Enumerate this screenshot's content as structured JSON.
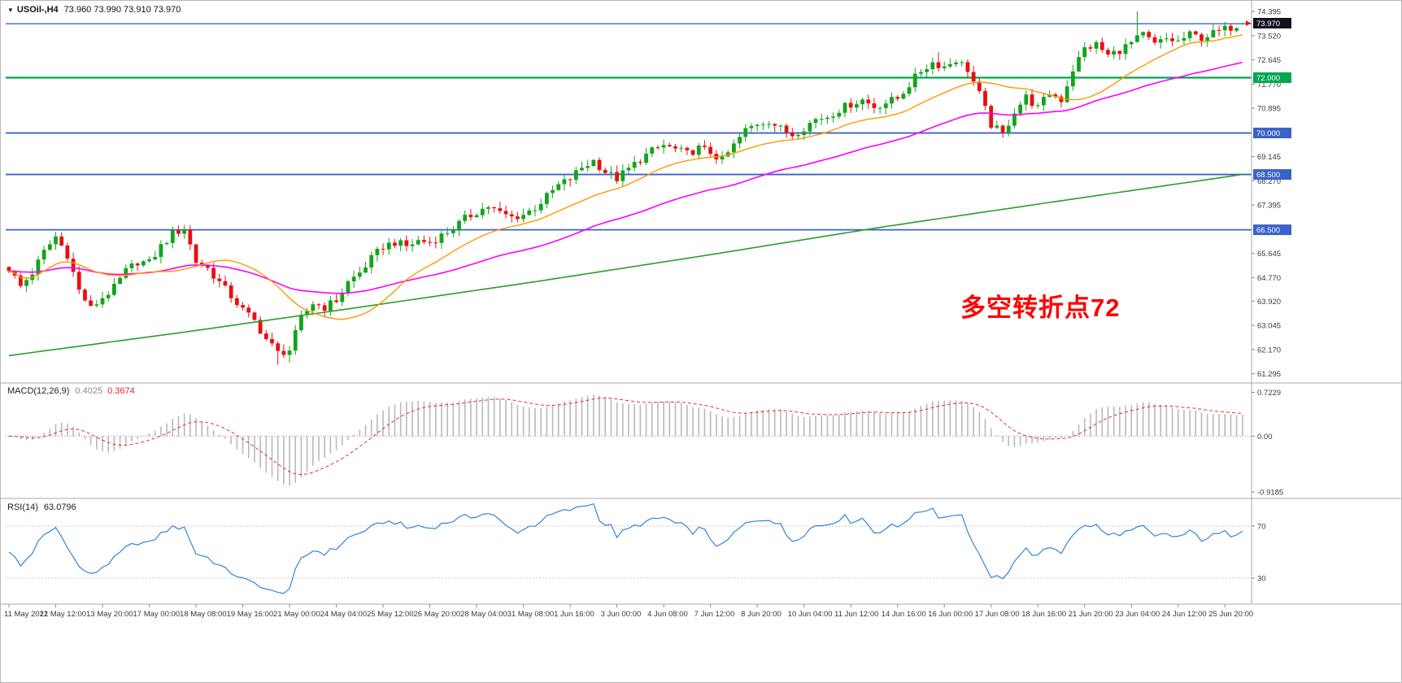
{
  "window": {
    "symbol_period": "USOil-,H4",
    "ohlc_quotes": "73.960 73.990 73.910 73.970"
  },
  "annotation": {
    "text": "多空转折点72",
    "color": "#ff0000"
  },
  "main_chart": {
    "price_axis_labels": [
      "74.395",
      "73.520",
      "72.645",
      "71.770",
      "70.895",
      "69.145",
      "68.270",
      "67.395",
      "65.645",
      "64.770",
      "63.920",
      "63.045",
      "62.170",
      "61.295"
    ],
    "price_badges": [
      {
        "text": "73.970",
        "price": 73.97,
        "bg": "#10131e"
      },
      {
        "text": "72.000",
        "price": 72.0,
        "bg": "#00a651"
      },
      {
        "text": "70.000",
        "price": 70.0,
        "bg": "#3a62c8"
      },
      {
        "text": "68.500",
        "price": 68.5,
        "bg": "#3a62c8"
      },
      {
        "text": "66.500",
        "price": 66.5,
        "bg": "#3a62c8"
      }
    ],
    "hlines": [
      {
        "price": 73.95,
        "color": "#3a62c8",
        "width": 1.4
      },
      {
        "price": 72.0,
        "color": "#00a651",
        "width": 2.2
      },
      {
        "price": 70.0,
        "color": "#3a62c8",
        "width": 1.8
      },
      {
        "price": 68.5,
        "color": "#3a62c8",
        "width": 1.8
      },
      {
        "price": 66.5,
        "color": "#3a62c8",
        "width": 1.8
      }
    ]
  },
  "macd_panel": {
    "name": "MACD(12,26,9)",
    "main_value": "0.4025",
    "signal_value": "0.3674",
    "axis_labels": [
      "0.7229",
      "0.00",
      "-0.9185"
    ]
  },
  "rsi_panel": {
    "name": "RSI(14)",
    "value": "63.0796",
    "level_labels": [
      "70",
      "30"
    ]
  },
  "time_axis": {
    "labels": [
      "11 May 2021",
      "12 May 12:00",
      "13 May 20:00",
      "17 May 00:00",
      "18 May 08:00",
      "19 May 16:00",
      "21 May 00:00",
      "24 May 04:00",
      "25 May 12:00",
      "26 May 20:00",
      "28 May 04:00",
      "31 May 08:00",
      "1 Jun 16:00",
      "3 Jun 00:00",
      "4 Jun 08:00",
      "7 Jun 12:00",
      "8 Jun 20:00",
      "10 Jun 04:00",
      "11 Jun 12:00",
      "14 Jun 16:00",
      "16 Jun 00:00",
      "17 Jun 08:00",
      "18 Jun 16:00",
      "21 Jun 20:00",
      "23 Jun 04:00",
      "24 Jun 12:00",
      "25 Jun 20:00"
    ]
  },
  "chart_data": {
    "type": "candlestick",
    "instrument": "USOil",
    "timeframe": "H4",
    "title": "USOil-,H4 73.960 73.990 73.910 73.970",
    "last_ohlc": {
      "open": 73.96,
      "high": 73.99,
      "low": 73.91,
      "close": 73.97
    },
    "y_range": [
      61.02,
      74.72
    ],
    "candle_count": 212,
    "candles_per_time_label": 8,
    "close_path_anchors": [
      [
        0,
        65.1
      ],
      [
        2,
        64.45
      ],
      [
        4,
        64.95
      ],
      [
        6,
        65.7
      ],
      [
        8,
        66.25
      ],
      [
        10,
        65.6
      ],
      [
        12,
        64.3
      ],
      [
        14,
        63.65
      ],
      [
        16,
        64.05
      ],
      [
        18,
        64.4
      ],
      [
        20,
        65.0
      ],
      [
        22,
        65.35
      ],
      [
        24,
        65.3
      ],
      [
        26,
        65.9
      ],
      [
        28,
        66.35
      ],
      [
        30,
        66.55
      ],
      [
        32,
        65.35
      ],
      [
        34,
        65.1
      ],
      [
        36,
        64.6
      ],
      [
        38,
        64.1
      ],
      [
        40,
        63.6
      ],
      [
        42,
        63.2
      ],
      [
        44,
        62.55
      ],
      [
        46,
        62.05
      ],
      [
        48,
        62.15
      ],
      [
        50,
        63.3
      ],
      [
        52,
        63.85
      ],
      [
        54,
        63.7
      ],
      [
        56,
        63.95
      ],
      [
        58,
        64.6
      ],
      [
        60,
        64.95
      ],
      [
        62,
        65.45
      ],
      [
        64,
        65.9
      ],
      [
        66,
        66.05
      ],
      [
        68,
        65.9
      ],
      [
        70,
        66.1
      ],
      [
        72,
        66.05
      ],
      [
        74,
        66.3
      ],
      [
        76,
        66.55
      ],
      [
        78,
        66.9
      ],
      [
        80,
        67.15
      ],
      [
        82,
        67.35
      ],
      [
        84,
        67.1
      ],
      [
        86,
        66.95
      ],
      [
        88,
        67.05
      ],
      [
        90,
        67.3
      ],
      [
        92,
        67.7
      ],
      [
        94,
        68.1
      ],
      [
        96,
        68.35
      ],
      [
        98,
        68.75
      ],
      [
        100,
        69.0
      ],
      [
        102,
        68.6
      ],
      [
        104,
        68.35
      ],
      [
        106,
        68.7
      ],
      [
        108,
        69.05
      ],
      [
        110,
        69.35
      ],
      [
        112,
        69.55
      ],
      [
        114,
        69.4
      ],
      [
        116,
        69.25
      ],
      [
        118,
        69.45
      ],
      [
        120,
        69.3
      ],
      [
        122,
        69.0
      ],
      [
        124,
        69.55
      ],
      [
        126,
        70.1
      ],
      [
        128,
        70.35
      ],
      [
        130,
        70.45
      ],
      [
        132,
        70.15
      ],
      [
        134,
        69.95
      ],
      [
        136,
        70.2
      ],
      [
        138,
        70.5
      ],
      [
        140,
        70.6
      ],
      [
        142,
        70.85
      ],
      [
        144,
        71.05
      ],
      [
        146,
        71.2
      ],
      [
        148,
        70.95
      ],
      [
        150,
        71.1
      ],
      [
        152,
        71.25
      ],
      [
        154,
        71.75
      ],
      [
        156,
        72.25
      ],
      [
        158,
        72.55
      ],
      [
        160,
        72.4
      ],
      [
        162,
        72.65
      ],
      [
        164,
        72.3
      ],
      [
        166,
        71.4
      ],
      [
        168,
        70.3
      ],
      [
        170,
        69.95
      ],
      [
        172,
        70.8
      ],
      [
        174,
        71.3
      ],
      [
        176,
        70.9
      ],
      [
        178,
        71.45
      ],
      [
        180,
        71.2
      ],
      [
        182,
        72.3
      ],
      [
        184,
        73.05
      ],
      [
        186,
        73.2
      ],
      [
        188,
        72.8
      ],
      [
        190,
        73.0
      ],
      [
        192,
        73.25
      ],
      [
        194,
        73.55
      ],
      [
        196,
        73.2
      ],
      [
        198,
        73.4
      ],
      [
        200,
        73.3
      ],
      [
        202,
        73.55
      ],
      [
        204,
        73.45
      ],
      [
        206,
        73.6
      ],
      [
        208,
        73.75
      ],
      [
        210,
        73.9
      ],
      [
        211,
        73.97
      ]
    ],
    "high_spikes": [
      [
        8,
        66.42
      ],
      [
        30,
        66.68
      ],
      [
        159,
        72.92
      ],
      [
        193,
        74.4
      ]
    ],
    "low_spikes": [
      [
        46,
        61.62
      ],
      [
        48,
        61.7
      ],
      [
        170,
        69.82
      ]
    ],
    "moving_averages": {
      "fast": {
        "period": 20,
        "color": "#ff9900"
      },
      "mid": {
        "period": 55,
        "color": "#ff00ff"
      },
      "slow": {
        "color": "#2e9b2e",
        "anchors": [
          [
            0,
            61.95
          ],
          [
            30,
            62.8
          ],
          [
            60,
            63.7
          ],
          [
            90,
            64.62
          ],
          [
            120,
            65.6
          ],
          [
            150,
            66.62
          ],
          [
            180,
            67.55
          ],
          [
            211,
            68.5
          ]
        ]
      }
    },
    "candle_colors": {
      "bull": "#14a31c",
      "bear": "#e81010"
    },
    "macd": {
      "fast": 12,
      "slow": 26,
      "signal": 9,
      "axis_range": [
        -1.0,
        0.85
      ],
      "histogram_color": "#b9b9b9",
      "signal_color": "#e03131"
    },
    "rsi": {
      "period": 14,
      "levels": [
        70,
        30
      ],
      "color": "#2f86d6"
    }
  }
}
